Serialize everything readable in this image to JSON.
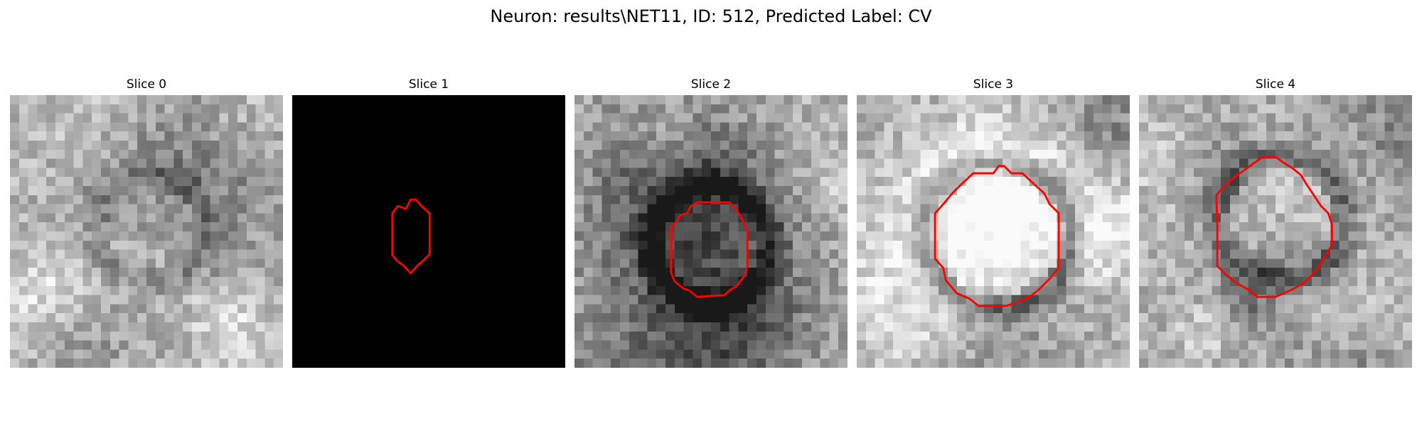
{
  "figure": {
    "title": "Neuron: results\\NET11, ID: 512, Predicted Label: CV"
  },
  "panels": [
    {
      "title": "Slice 0",
      "background": "noise",
      "seed": 11,
      "contour": false
    },
    {
      "title": "Slice 1",
      "background": "black",
      "seed": 0,
      "contour": true
    },
    {
      "title": "Slice 2",
      "background": "noise",
      "seed": 23,
      "contour": true
    },
    {
      "title": "Slice 3",
      "background": "noise",
      "seed": 37,
      "contour": true
    },
    {
      "title": "Slice 4",
      "background": "noise",
      "seed": 53,
      "contour": true
    }
  ],
  "colors": {
    "contour": "#ff0000",
    "mask_background": "#000000"
  }
}
